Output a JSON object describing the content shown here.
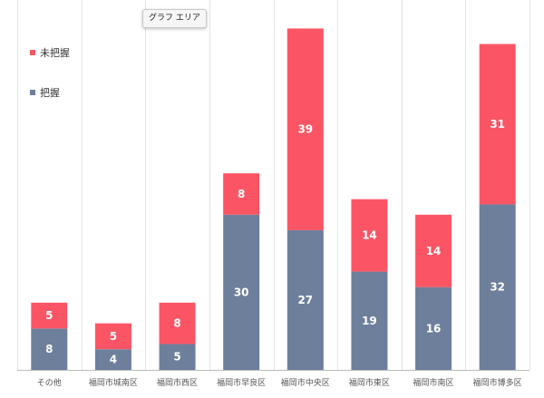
{
  "tooltip": "グラフ エリア",
  "chart_data": {
    "type": "bar",
    "stacked": true,
    "categories": [
      "その他",
      "福岡市城南区",
      "福岡市西区",
      "福岡市早良区",
      "福岡市中央区",
      "福岡市東区",
      "福岡市南区",
      "福岡市博多区"
    ],
    "series": [
      {
        "name": "把握",
        "color": "#6e7f9c",
        "values": [
          8,
          4,
          5,
          30,
          27,
          19,
          16,
          32
        ]
      },
      {
        "name": "未把握",
        "color": "#fb5565",
        "values": [
          5,
          5,
          8,
          8,
          39,
          14,
          14,
          31
        ]
      }
    ],
    "ylim": [
      0,
      68
    ],
    "grid": "vertical-separators",
    "legend_position": "top-left",
    "legend_order": [
      "未把握",
      "把握"
    ]
  }
}
